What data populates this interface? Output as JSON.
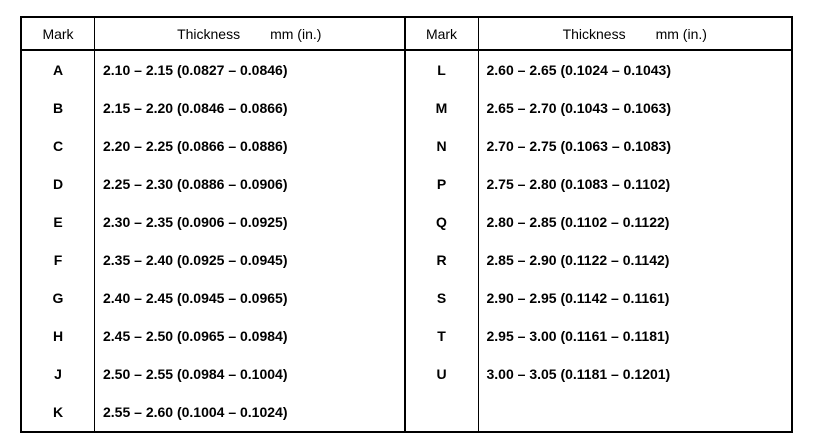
{
  "table": {
    "header": [
      "Mark",
      "Thickness",
      "mm (in.)",
      "Mark",
      "Thickness",
      "mm (in.)"
    ],
    "left": [
      [
        "A",
        "2.10 – 2.15 (0.0827 – 0.0846)"
      ],
      [
        "B",
        "2.15 – 2.20 (0.0846 – 0.0866)"
      ],
      [
        "C",
        "2.20 – 2.25 (0.0866 – 0.0886)"
      ],
      [
        "D",
        "2.25 – 2.30 (0.0886 – 0.0906)"
      ],
      [
        "E",
        "2.30 – 2.35 (0.0906 – 0.0925)"
      ],
      [
        "F",
        "2.35 – 2.40 (0.0925 – 0.0945)"
      ],
      [
        "G",
        "2.40 – 2.45 (0.0945 – 0.0965)"
      ],
      [
        "H",
        "2.45 – 2.50 (0.0965 – 0.0984)"
      ],
      [
        "J",
        "2.50 – 2.55 (0.0984 – 0.1004)"
      ],
      [
        "K",
        "2.55 – 2.60 (0.1004 – 0.1024)"
      ]
    ],
    "right": [
      [
        "L",
        "2.60 – 2.65 (0.1024 – 0.1043)"
      ],
      [
        "M",
        "2.65 – 2.70 (0.1043 – 0.1063)"
      ],
      [
        "N",
        "2.70 – 2.75 (0.1063 – 0.1083)"
      ],
      [
        "P",
        "2.75 – 2.80 (0.1083 – 0.1102)"
      ],
      [
        "Q",
        "2.80 – 2.85 (0.1102 – 0.1122)"
      ],
      [
        "R",
        "2.85 – 2.90 (0.1122 – 0.1142)"
      ],
      [
        "S",
        "2.90 – 2.95 (0.1142 – 0.1161)"
      ],
      [
        "T",
        "2.95 – 3.00 (0.1161 – 0.1181)"
      ],
      [
        "U",
        "3.00 – 3.05 (0.1181 – 0.1201)"
      ]
    ]
  }
}
